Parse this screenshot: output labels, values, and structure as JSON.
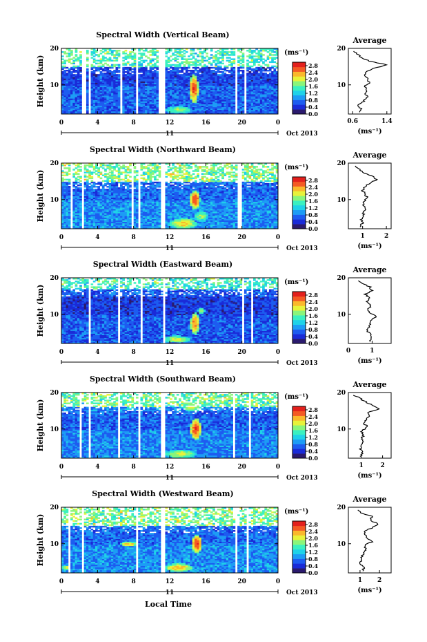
{
  "figure": {
    "time_axis_label": "Local Time",
    "date_label": "Oct 2013",
    "day_label": "11"
  },
  "colors": {
    "colormap": [
      "#2b1a6e",
      "#1a2bd8",
      "#1d5cf0",
      "#1d9cf5",
      "#1fd2e8",
      "#3af0c0",
      "#8af57a",
      "#e8f23a",
      "#fab82c",
      "#f45a24",
      "#e3201c"
    ]
  },
  "chart_data": [
    {
      "type": "heatmap",
      "title": "Spectral Width (Vertical Beam)",
      "ylabel": "Height (km)",
      "xlabel": "",
      "x_ticks": [
        "0",
        "4",
        "8",
        "12",
        "16",
        "20",
        "0"
      ],
      "xlim": [
        0,
        24
      ],
      "y_ticks": [
        "10",
        "20"
      ],
      "ylim": [
        2,
        20
      ],
      "colorbar": {
        "unit": "(ms⁻¹)",
        "ticks": [
          "2.8",
          "2.4",
          "2.0",
          "1.6",
          "1.2",
          "0.8",
          "0.4",
          "0.0"
        ],
        "range": [
          0,
          3.0
        ]
      },
      "profile": {
        "title": "Average",
        "xlabel": "(ms⁻¹)",
        "x_ticks": [
          "0.6",
          "1.4"
        ],
        "xlim": [
          0.5,
          1.5
        ],
        "y_ticks": [
          "10",
          "20"
        ],
        "ylim": [
          2,
          20
        ],
        "h": [
          2.5,
          3.5,
          4.5,
          5.5,
          6.5,
          7.5,
          8.5,
          9.5,
          10.5,
          11.5,
          12.5,
          13.5,
          14.5,
          15.5,
          16.5,
          17.5,
          18.5,
          19.5
        ],
        "v": [
          0.75,
          0.8,
          0.72,
          0.85,
          0.95,
          0.9,
          0.92,
          0.88,
          1.0,
          0.95,
          0.9,
          0.92,
          1.1,
          1.4,
          1.0,
          0.8,
          0.7,
          0.6
        ]
      },
      "gaps": [
        [
          2.3,
          2.7
        ],
        [
          3.0,
          3.2
        ],
        [
          6.4,
          6.7
        ],
        [
          8.3,
          8.6
        ],
        [
          10.8,
          11.6
        ],
        [
          19.3,
          19.6
        ],
        [
          20.2,
          20.5
        ]
      ],
      "sparse_above": 15,
      "hotspots": [
        {
          "t": 14.7,
          "z": 9,
          "dt": 0.5,
          "dz": 4,
          "v": 2.7
        },
        {
          "t": 13.0,
          "z": 3.2,
          "dt": 1.5,
          "dz": 1.0,
          "v": 1.8
        },
        {
          "t": 14.0,
          "z": 16,
          "dt": 1.0,
          "dz": 1,
          "v": 1.8
        }
      ],
      "base": 0.7
    },
    {
      "type": "heatmap",
      "title": "Spectral Width (Northward Beam)",
      "ylabel": "Height (km)",
      "xlabel": "",
      "x_ticks": [
        "0",
        "4",
        "8",
        "12",
        "16",
        "20",
        "0"
      ],
      "xlim": [
        0,
        24
      ],
      "y_ticks": [
        "10",
        "20"
      ],
      "ylim": [
        2,
        20
      ],
      "colorbar": {
        "unit": "(ms⁻¹)",
        "ticks": [
          "2.8",
          "2.4",
          "2.0",
          "1.6",
          "1.2",
          "0.8",
          "0.4",
          "0.0"
        ],
        "range": [
          0,
          3.0
        ]
      },
      "profile": {
        "title": "Average",
        "xlabel": "(ms⁻¹)",
        "x_ticks": [
          "1",
          "2"
        ],
        "xlim": [
          0.4,
          2.2
        ],
        "y_ticks": [
          "10",
          "20"
        ],
        "ylim": [
          2,
          20
        ],
        "h": [
          2.5,
          3.5,
          4.5,
          5.5,
          6.5,
          7.5,
          8.5,
          9.5,
          10.5,
          11.5,
          12.5,
          13.5,
          14.5,
          15.5,
          16.5,
          17.5,
          18.5,
          19.5
        ],
        "v": [
          0.9,
          1.0,
          0.95,
          1.0,
          1.05,
          1.1,
          1.0,
          1.05,
          1.2,
          1.1,
          1.0,
          1.1,
          1.3,
          1.6,
          1.4,
          1.0,
          0.8,
          0.7
        ]
      },
      "gaps": [
        [
          1.0,
          1.3
        ],
        [
          2.3,
          2.6
        ],
        [
          7.7,
          8.0
        ],
        [
          8.6,
          8.8
        ],
        [
          11.0,
          11.5
        ],
        [
          19.6,
          19.9
        ]
      ],
      "sparse_above": 15,
      "hotspots": [
        {
          "t": 14.8,
          "z": 10,
          "dt": 0.6,
          "dz": 2.5,
          "v": 2.7
        },
        {
          "t": 13.5,
          "z": 3.5,
          "dt": 1.5,
          "dz": 1.5,
          "v": 2.2
        },
        {
          "t": 15.5,
          "z": 5.5,
          "dt": 0.8,
          "dz": 1.5,
          "v": 1.8
        },
        {
          "t": 12.5,
          "z": 17,
          "dt": 1.5,
          "dz": 0.6,
          "v": 2.4
        }
      ],
      "base": 0.9
    },
    {
      "type": "heatmap",
      "title": "Spectral Width (Eastward Beam)",
      "ylabel": "Height (km)",
      "xlabel": "",
      "x_ticks": [
        "0",
        "4",
        "8",
        "12",
        "16",
        "20",
        "0"
      ],
      "xlim": [
        0,
        24
      ],
      "y_ticks": [
        "10",
        "20"
      ],
      "ylim": [
        2,
        20
      ],
      "colorbar": {
        "unit": "(ms⁻¹)",
        "ticks": [
          "2.8",
          "2.4",
          "2.0",
          "1.6",
          "1.2",
          "0.8",
          "0.4",
          "0.0"
        ],
        "range": [
          0,
          3.0
        ]
      },
      "profile": {
        "title": "Average",
        "xlabel": "(ms⁻¹)",
        "x_ticks": [
          "0",
          "1"
        ],
        "xlim": [
          0,
          1.8
        ],
        "y_ticks": [
          "10",
          "20"
        ],
        "ylim": [
          2,
          20
        ],
        "h": [
          2.5,
          3.5,
          4.5,
          5.5,
          6.5,
          7.5,
          8.5,
          9.5,
          10.5,
          11.5,
          12.5,
          13.5,
          14.5,
          15.5,
          16.5,
          17.5,
          18.5,
          19.5
        ],
        "v": [
          0.9,
          1.0,
          0.95,
          0.8,
          0.85,
          0.95,
          1.0,
          1.2,
          0.9,
          0.85,
          0.95,
          0.8,
          0.9,
          0.7,
          1.0,
          0.9,
          0.6,
          0.4
        ]
      },
      "gaps": [
        [
          2.9,
          3.2
        ],
        [
          6.3,
          6.6
        ],
        [
          8.8,
          9.1
        ],
        [
          11.3,
          11.6
        ],
        [
          20.0,
          20.3
        ],
        [
          20.9,
          21.2
        ]
      ],
      "sparse_above": 17,
      "hotspots": [
        {
          "t": 14.8,
          "z": 7.5,
          "dt": 0.5,
          "dz": 3,
          "v": 2.5
        },
        {
          "t": 12.8,
          "z": 3.2,
          "dt": 1.5,
          "dz": 1.0,
          "v": 2.0
        },
        {
          "t": 15.5,
          "z": 11,
          "dt": 0.4,
          "dz": 1,
          "v": 1.8
        }
      ],
      "base": 0.65
    },
    {
      "type": "heatmap",
      "title": "Spectral Width (Southward Beam)",
      "ylabel": "Height (km)",
      "xlabel": "",
      "x_ticks": [
        "0",
        "4",
        "8",
        "12",
        "16",
        "20",
        "0"
      ],
      "xlim": [
        0,
        24
      ],
      "y_ticks": [
        "10",
        "20"
      ],
      "ylim": [
        2,
        20
      ],
      "colorbar": {
        "unit": "(ms⁻¹)",
        "ticks": [
          "2.8",
          "2.4",
          "2.0",
          "1.6",
          "1.2",
          "0.8",
          "0.4",
          "0.0"
        ],
        "range": [
          0,
          3.0
        ]
      },
      "profile": {
        "title": "Average",
        "xlabel": "(ms⁻¹)",
        "x_ticks": [
          "1",
          "2"
        ],
        "xlim": [
          0.4,
          2.4
        ],
        "y_ticks": [
          "10",
          "20"
        ],
        "ylim": [
          2,
          20
        ],
        "h": [
          2.5,
          3.5,
          4.5,
          5.5,
          6.5,
          7.5,
          8.5,
          9.5,
          10.5,
          11.5,
          12.5,
          13.5,
          14.5,
          15.5,
          16.5,
          17.5,
          18.5,
          19.5
        ],
        "v": [
          1.0,
          1.05,
          0.95,
          1.0,
          1.1,
          1.05,
          1.1,
          1.0,
          1.3,
          1.15,
          1.2,
          1.4,
          1.3,
          1.8,
          1.5,
          1.2,
          0.9,
          0.6
        ]
      },
      "gaps": [
        [
          2.0,
          2.3
        ],
        [
          3.0,
          3.2
        ],
        [
          6.3,
          6.6
        ],
        [
          8.4,
          8.7
        ],
        [
          11.1,
          11.5
        ],
        [
          19.0,
          19.3
        ],
        [
          20.8,
          21.1
        ]
      ],
      "sparse_above": 16,
      "hotspots": [
        {
          "t": 14.9,
          "z": 10,
          "dt": 0.6,
          "dz": 3,
          "v": 2.7
        },
        {
          "t": 13.2,
          "z": 3.2,
          "dt": 1.8,
          "dz": 1.2,
          "v": 2.0
        },
        {
          "t": 14.5,
          "z": 16,
          "dt": 1.2,
          "dz": 1.2,
          "v": 1.9
        }
      ],
      "base": 0.85
    },
    {
      "type": "heatmap",
      "title": "Spectral Width (Westward Beam)",
      "ylabel": "Height (km)",
      "xlabel": "Local Time",
      "x_ticks": [
        "0",
        "4",
        "8",
        "12",
        "16",
        "20",
        "0"
      ],
      "xlim": [
        0,
        24
      ],
      "y_ticks": [
        "10",
        "20"
      ],
      "ylim": [
        2,
        20
      ],
      "colorbar": {
        "unit": "(ms⁻¹)",
        "ticks": [
          "2.8",
          "2.4",
          "2.0",
          "1.6",
          "1.2",
          "0.8",
          "0.4",
          "0.0"
        ],
        "range": [
          0,
          3.0
        ]
      },
      "profile": {
        "title": "Average",
        "xlabel": "(ms⁻¹)",
        "x_ticks": [
          "1",
          "2"
        ],
        "xlim": [
          0.4,
          2.6
        ],
        "y_ticks": [
          "10",
          "20"
        ],
        "ylim": [
          2,
          20
        ],
        "h": [
          2.5,
          3.5,
          4.5,
          5.5,
          6.5,
          7.5,
          8.5,
          9.5,
          10.5,
          11.5,
          12.5,
          13.5,
          14.5,
          15.5,
          16.5,
          17.5,
          18.5,
          19.5
        ],
        "v": [
          1.1,
          1.2,
          1.0,
          1.05,
          1.1,
          1.2,
          1.3,
          1.2,
          1.6,
          1.4,
          1.3,
          1.2,
          1.7,
          1.9,
          1.5,
          1.6,
          1.0,
          0.9
        ]
      },
      "gaps": [
        [
          0.8,
          1.1
        ],
        [
          2.2,
          2.5
        ],
        [
          6.4,
          6.6
        ],
        [
          8.2,
          8.5
        ],
        [
          11.0,
          11.4
        ],
        [
          19.2,
          19.5
        ],
        [
          20.4,
          20.7
        ]
      ],
      "sparse_above": 15,
      "hotspots": [
        {
          "t": 15.0,
          "z": 10,
          "dt": 0.6,
          "dz": 2.5,
          "v": 2.7
        },
        {
          "t": 13.0,
          "z": 3.5,
          "dt": 1.6,
          "dz": 1.2,
          "v": 2.3
        },
        {
          "t": 7.5,
          "z": 10,
          "dt": 1.0,
          "dz": 0.6,
          "v": 2.3
        },
        {
          "t": 0.5,
          "z": 3.5,
          "dt": 0.6,
          "dz": 0.6,
          "v": 2.0
        }
      ],
      "base": 0.9
    }
  ]
}
